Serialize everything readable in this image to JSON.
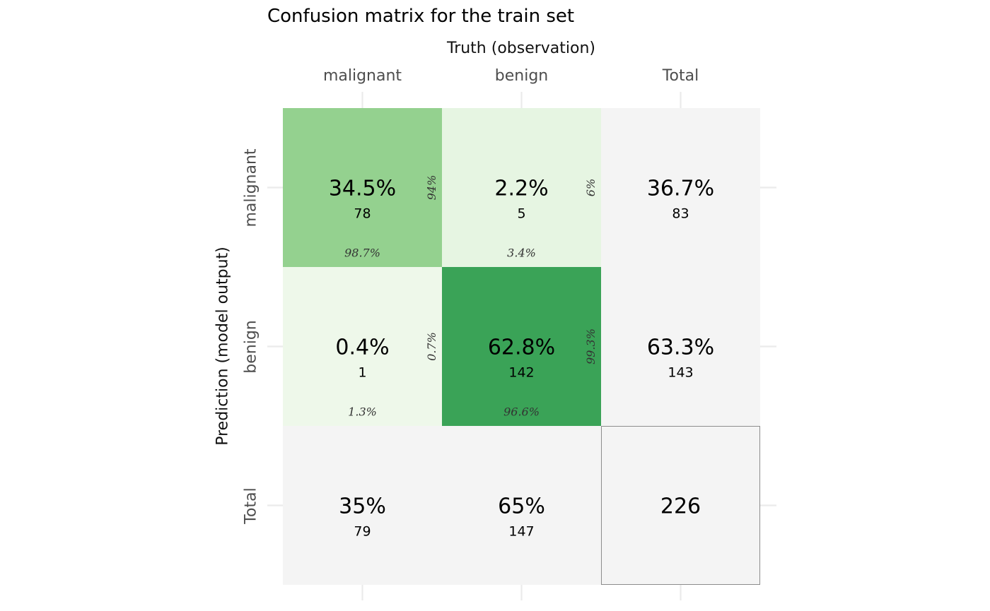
{
  "chart_data": {
    "type": "heatmap",
    "title": "Confusion matrix for the train set",
    "xlabel": "Truth (observation)",
    "ylabel": "Prediction (model output)",
    "x_categories": [
      "malignant",
      "benign",
      "Total"
    ],
    "y_categories": [
      "malignant",
      "benign",
      "Total"
    ],
    "cells": [
      {
        "prediction": "malignant",
        "truth": "malignant",
        "percent": "34.5%",
        "count": 78,
        "col_pct": "98.7%",
        "row_pct": "94%",
        "color": "#94d18f"
      },
      {
        "prediction": "malignant",
        "truth": "benign",
        "percent": "2.2%",
        "count": 5,
        "col_pct": "3.4%",
        "row_pct": "6%",
        "color": "#e6f5e2"
      },
      {
        "prediction": "benign",
        "truth": "malignant",
        "percent": "0.4%",
        "count": 1,
        "col_pct": "1.3%",
        "row_pct": "0.7%",
        "color": "#eef8ea"
      },
      {
        "prediction": "benign",
        "truth": "benign",
        "percent": "62.8%",
        "count": 142,
        "col_pct": "96.6%",
        "row_pct": "99.3%",
        "color": "#3aa357"
      }
    ],
    "row_totals": [
      {
        "prediction": "malignant",
        "percent": "36.7%",
        "count": 83
      },
      {
        "prediction": "benign",
        "percent": "63.3%",
        "count": 143
      }
    ],
    "column_totals": [
      {
        "truth": "malignant",
        "percent": "35%",
        "count": 79
      },
      {
        "truth": "benign",
        "percent": "65%",
        "count": 147
      }
    ],
    "grand_total": 226,
    "total_tile_color": "#f4f4f4",
    "grid_color": "#ebebeb"
  }
}
